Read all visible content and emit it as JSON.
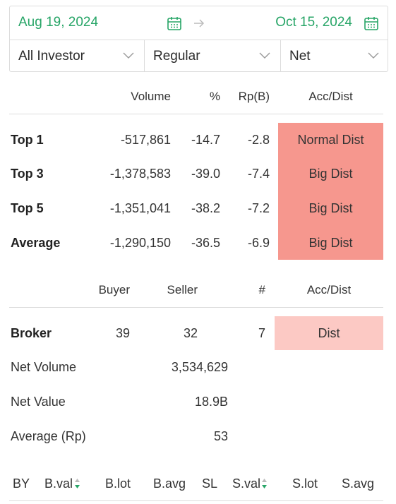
{
  "filters": {
    "start_date": "Aug 19, 2024",
    "end_date": "Oct 15, 2024",
    "investor": "All Investor",
    "market": "Regular",
    "mode": "Net"
  },
  "top_table": {
    "headers": {
      "volume": "Volume",
      "pct": "%",
      "rp": "Rp(B)",
      "accdist": "Acc/Dist"
    },
    "rows": [
      {
        "label": "Top 1",
        "volume": "-517,861",
        "pct": "-14.7",
        "rp": "-2.8",
        "accdist": "Normal Dist"
      },
      {
        "label": "Top 3",
        "volume": "-1,378,583",
        "pct": "-39.0",
        "rp": "-7.4",
        "accdist": "Big Dist"
      },
      {
        "label": "Top 5",
        "volume": "-1,351,041",
        "pct": "-38.2",
        "rp": "-7.2",
        "accdist": "Big Dist"
      },
      {
        "label": "Average",
        "volume": "-1,290,150",
        "pct": "-36.5",
        "rp": "-6.9",
        "accdist": "Big Dist"
      }
    ]
  },
  "broker_table": {
    "headers": {
      "buyer": "Buyer",
      "seller": "Seller",
      "count": "#",
      "accdist": "Acc/Dist"
    },
    "broker": {
      "label": "Broker",
      "buyer": "39",
      "seller": "32",
      "count": "7",
      "accdist": "Dist"
    },
    "net_volume": {
      "label": "Net Volume",
      "value": "3,534,629"
    },
    "net_value": {
      "label": "Net Value",
      "value": "18.9B"
    },
    "average": {
      "label": "Average (Rp)",
      "value": "53"
    }
  },
  "bottom_headers": {
    "by": "BY",
    "bval": "B.val",
    "blot": "B.lot",
    "bavg": "B.avg",
    "sl": "SL",
    "sval": "S.val",
    "slot": "S.lot",
    "savg": "S.avg"
  },
  "colors": {
    "accent_green": "#27a567",
    "big_dist": "#f6978e",
    "dist": "#fcc9c4"
  },
  "icons": [
    "calendar-icon",
    "arrow-right-icon",
    "chevron-down-icon",
    "sort-icon"
  ]
}
